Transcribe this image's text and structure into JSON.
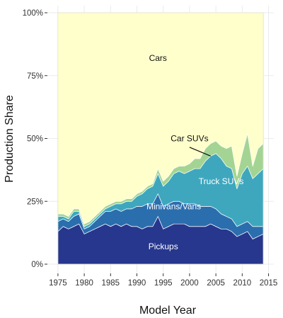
{
  "chart_data": {
    "type": "area",
    "stacked": true,
    "xlabel": "Model Year",
    "ylabel": "Production Share",
    "xlim": [
      1973,
      2016
    ],
    "ylim": [
      0,
      100
    ],
    "x_ticks": [
      1975,
      1980,
      1985,
      1990,
      1995,
      2000,
      2005,
      2010,
      2015
    ],
    "y_ticks": [
      0,
      25,
      50,
      75,
      100
    ],
    "y_tick_labels": [
      "0%",
      "25%",
      "50%",
      "75%",
      "100%"
    ],
    "grid": true,
    "colors": {
      "Pickups": "#27378e",
      "Minivans/Vans": "#2b6eae",
      "Truck SUVs": "#3ea7be",
      "Car SUVs": "#a4d493",
      "Cars": "#ffffcc"
    },
    "x": [
      1975,
      1976,
      1977,
      1978,
      1979,
      1980,
      1981,
      1982,
      1983,
      1984,
      1985,
      1986,
      1987,
      1988,
      1989,
      1990,
      1991,
      1992,
      1993,
      1994,
      1995,
      1996,
      1997,
      1998,
      1999,
      2000,
      2001,
      2002,
      2003,
      2004,
      2005,
      2006,
      2007,
      2008,
      2009,
      2010,
      2011,
      2012,
      2013,
      2014
    ],
    "series": [
      {
        "name": "Pickups",
        "values": [
          13,
          15,
          14,
          15,
          16,
          12,
          13,
          14,
          15,
          16,
          15,
          16,
          15,
          16,
          15,
          15,
          14,
          15,
          15,
          19,
          14,
          15,
          16,
          16,
          16,
          15,
          15,
          15,
          15,
          16,
          15,
          14,
          14,
          13,
          11,
          12,
          13,
          10,
          11,
          12
        ]
      },
      {
        "name": "Minivans/Vans",
        "values": [
          4,
          3,
          3,
          4,
          4,
          2,
          2,
          3,
          4,
          5,
          6,
          6,
          6,
          6,
          7,
          8,
          9,
          9,
          9,
          9,
          9,
          9,
          9,
          9,
          8,
          9,
          9,
          8,
          8,
          7,
          7,
          6,
          5,
          5,
          4,
          4,
          4,
          5,
          4,
          3
        ]
      },
      {
        "name": "Truck SUVs",
        "values": [
          2,
          1,
          1,
          2,
          1,
          1,
          1,
          1,
          1,
          1,
          2,
          2,
          3,
          3,
          3,
          4,
          5,
          6,
          7,
          8,
          8,
          9,
          11,
          12,
          12,
          13,
          14,
          15,
          18,
          20,
          22,
          22,
          20,
          20,
          15,
          20,
          22,
          19,
          21,
          23
        ]
      },
      {
        "name": "Car SUVs",
        "values": [
          1,
          1,
          1,
          1,
          1,
          1,
          1,
          1,
          1,
          1,
          1,
          1,
          1,
          1,
          1,
          1,
          1,
          1,
          1,
          2,
          2,
          2,
          2,
          2,
          3,
          3,
          4,
          4,
          5,
          5,
          5,
          5,
          7,
          9,
          5,
          8,
          13,
          5,
          10,
          10
        ]
      }
    ],
    "remainder_series": "Cars",
    "labels": [
      {
        "text": "Cars",
        "x": 1994,
        "y": 82
      },
      {
        "text": "Car SUVs",
        "x": 2000,
        "y": 50
      },
      {
        "text": "Truck SUVs",
        "x": 2006,
        "y": 33
      },
      {
        "text": "Minivans/Vans",
        "x": 1997,
        "y": 23
      },
      {
        "text": "Pickups",
        "x": 1995,
        "y": 7
      }
    ],
    "leader_line": {
      "from": [
        2000,
        46.5
      ],
      "to": [
        2004,
        43
      ]
    }
  }
}
